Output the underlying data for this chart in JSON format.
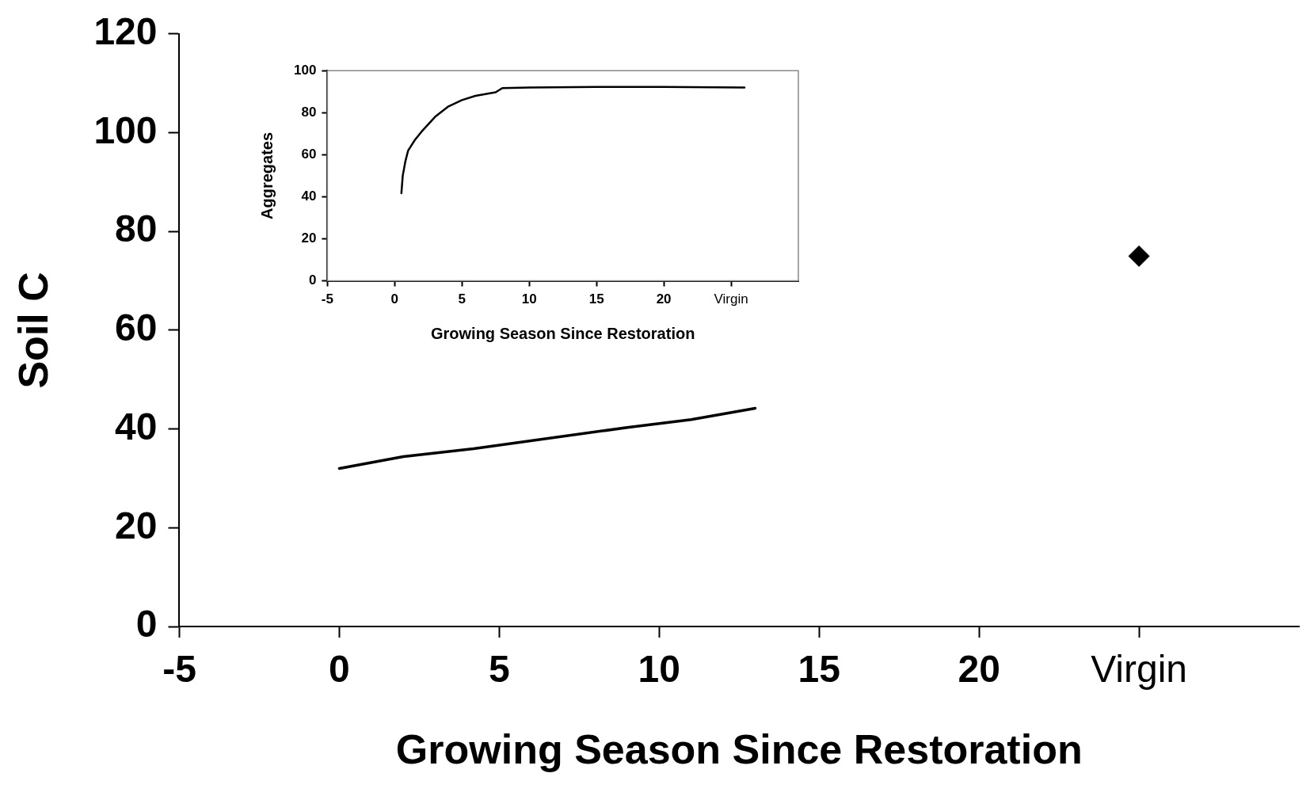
{
  "chart_data": [
    {
      "type": "line",
      "xlabel": "Growing Season Since Restoration",
      "ylabel": "Soil C",
      "xlim": [
        -5,
        30
      ],
      "ylim": [
        0,
        120
      ],
      "xticks": [
        -5,
        0,
        5,
        10,
        15,
        20,
        {
          "value": 25,
          "label": "Virgin"
        }
      ],
      "yticks": [
        0,
        20,
        40,
        60,
        80,
        100,
        120
      ],
      "grid": false,
      "legend": false,
      "series": [
        {
          "x": [
            0,
            2,
            4.2,
            9,
            11,
            13
          ],
          "values": [
            32,
            34.4,
            36,
            40.3,
            41.9,
            44.2
          ],
          "color": "#000000",
          "marker": "none",
          "line_style": "solid"
        },
        {
          "type": "scatter",
          "x": [
            25
          ],
          "values": [
            75
          ],
          "color": "#000000",
          "marker": "diamond"
        }
      ]
    },
    {
      "type": "line",
      "xlabel": "Growing Season Since Restoration",
      "ylabel": "Aggregates",
      "xlim": [
        -5,
        30
      ],
      "ylim": [
        0,
        100
      ],
      "xticks": [
        -5,
        0,
        5,
        10,
        15,
        20,
        {
          "value": 25,
          "label": "Virgin"
        }
      ],
      "yticks": [
        0,
        20,
        40,
        60,
        80,
        100
      ],
      "grid": false,
      "legend": false,
      "series": [
        {
          "x": [
            0.5,
            0.6,
            0.8,
            1,
            1.5,
            2,
            3,
            4,
            5,
            6,
            7.5,
            8,
            10,
            15,
            20,
            26
          ],
          "values": [
            41.7,
            50,
            57,
            62,
            67,
            71,
            78,
            83,
            86,
            88,
            89.7,
            91.7,
            92,
            92.3,
            92.3,
            92
          ],
          "color": "#000000",
          "marker": "none",
          "line_style": "solid"
        }
      ]
    }
  ]
}
